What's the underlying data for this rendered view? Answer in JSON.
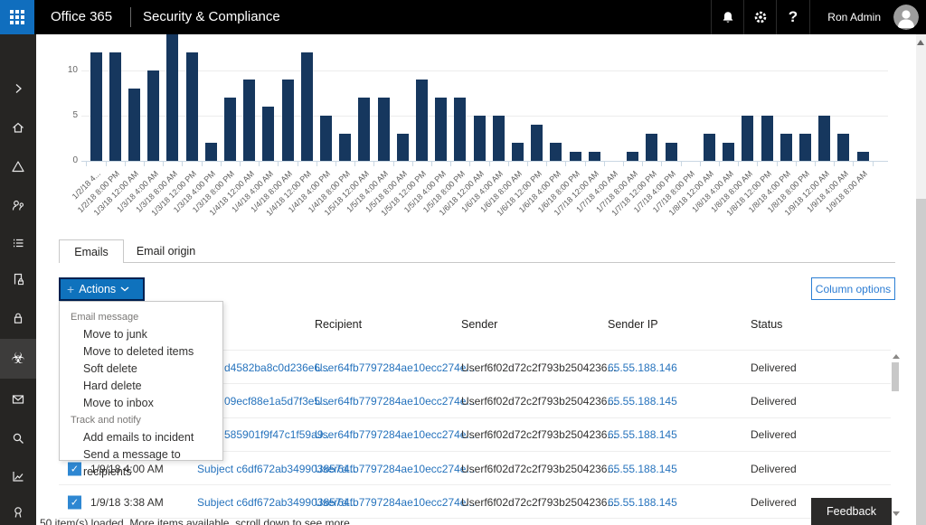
{
  "topbar": {
    "brand": "Office 365",
    "title": "Security & Compliance",
    "user": "Ron Admin",
    "icons": [
      "app-launcher-icon",
      "bell-icon",
      "gear-icon",
      "help-icon",
      "avatar"
    ]
  },
  "icons": {
    "help_glyph": "?",
    "plus_glyph": "+",
    "check_glyph": "✓",
    "biohazard_glyph": "☣"
  },
  "colors": {
    "topbar_bg": "#000000",
    "app_launcher_blue": "#106ebe",
    "sidebar_bg": "#262523",
    "sidebar_selected_bg": "#3d3c3b",
    "bar_navy": "#16375e",
    "link_blue": "#2673bd",
    "actions_button_blue": "#0f72bd",
    "actions_button_border": "#002050",
    "column_options_blue": "#2b7cd3",
    "checkbox_blue": "#2e87d2",
    "feedback_bg": "#2b2a29"
  },
  "sidebar": {
    "selected": "threat-management-icon",
    "items": [
      {
        "name": "expand-nav-icon"
      },
      {
        "name": "home-icon"
      },
      {
        "name": "alerts-icon"
      },
      {
        "name": "permissions-icon"
      },
      {
        "name": "classifications-icon"
      },
      {
        "name": "data-loss-prevention-icon"
      },
      {
        "name": "data-governance-icon"
      },
      {
        "name": "threat-management-icon"
      },
      {
        "name": "mail-flow-icon"
      },
      {
        "name": "search-icon"
      },
      {
        "name": "reports-icon"
      },
      {
        "name": "service-assurance-icon"
      }
    ]
  },
  "chart_data": {
    "type": "bar",
    "title": "",
    "xlabel": "",
    "ylabel": "",
    "yticks": [
      0,
      5,
      10
    ],
    "ylim": [
      0,
      15
    ],
    "grid": "horizontal",
    "legend": "none",
    "bar_color": "#16375e",
    "categories": [
      "1/2/18 4...",
      "1/2/18 8:00 PM",
      "1/3/18 12:00 AM",
      "1/3/18 4:00 AM",
      "1/3/18 8:00 AM",
      "1/3/18 12:00 PM",
      "1/3/18 4:00 PM",
      "1/3/18 8:00 PM",
      "1/4/18 12:00 AM",
      "1/4/18 4:00 AM",
      "1/4/18 8:00 AM",
      "1/4/18 12:00 PM",
      "1/4/18 4:00 PM",
      "1/4/18 8:00 PM",
      "1/5/18 12:00 AM",
      "1/5/18 4:00 AM",
      "1/5/18 8:00 AM",
      "1/5/18 12:00 PM",
      "1/5/18 4:00 PM",
      "1/5/18 8:00 PM",
      "1/6/18 12:00 AM",
      "1/6/18 4:00 AM",
      "1/6/18 8:00 AM",
      "1/6/18 12:00 PM",
      "1/6/18 4:00 PM",
      "1/6/18 8:00 PM",
      "1/7/18 12:00 AM",
      "1/7/18 4:00 AM",
      "1/7/18 8:00 AM",
      "1/7/18 12:00 PM",
      "1/7/18 4:00 PM",
      "1/7/18 8:00 PM",
      "1/8/18 12:00 AM",
      "1/8/18 4:00 AM",
      "1/8/18 8:00 AM",
      "1/8/18 12:00 PM",
      "1/8/18 4:00 PM",
      "1/8/18 8:00 PM",
      "1/9/18 12:00 AM",
      "1/9/18 4:00 AM",
      "1/9/18 8:00 AM"
    ],
    "values": [
      12,
      12,
      8,
      10,
      15,
      12,
      2,
      7,
      9,
      6,
      9,
      12,
      5,
      3,
      7,
      7,
      3,
      9,
      7,
      7,
      5,
      5,
      2,
      4,
      2,
      1,
      1,
      0,
      1,
      3,
      2,
      0,
      3,
      2,
      5,
      5,
      3,
      3,
      5,
      3,
      1
    ]
  },
  "tabs": {
    "active": "Emails",
    "items": [
      "Emails",
      "Email origin"
    ]
  },
  "toolbar": {
    "actions_label": "Actions",
    "column_options_label": "Column options"
  },
  "actions_menu": {
    "sections": [
      {
        "header": "Email message",
        "items": [
          "Move to junk",
          "Move to deleted items",
          "Soft delete",
          "Hard delete",
          "Move to inbox"
        ]
      },
      {
        "header": "Track and notify",
        "items": [
          "Add emails to incident",
          "Send a message to recipients"
        ]
      }
    ]
  },
  "table": {
    "headers": [
      "Recipient",
      "Sender",
      "Sender IP",
      "Status"
    ],
    "rows": [
      {
        "obscured": true,
        "subject_fragment": "d4582ba8c0d236e6...",
        "recipient": "User64fb7797284ae10ecc274e...",
        "sender": "Userf6f02d72c2f793b2504236...",
        "sender_ip": "65.55.188.146",
        "status": "Delivered"
      },
      {
        "obscured": true,
        "subject_fragment": "09ecf88e1a5d7f3e5...",
        "recipient": "User64fb7797284ae10ecc274e...",
        "sender": "Userf6f02d72c2f793b2504236...",
        "sender_ip": "65.55.188.145",
        "status": "Delivered"
      },
      {
        "obscured": true,
        "subject_fragment": "585901f9f47c1f59a9...",
        "recipient": "User64fb7797284ae10ecc274e...",
        "sender": "Userf6f02d72c2f793b2504236...",
        "sender_ip": "65.55.188.145",
        "status": "Delivered"
      },
      {
        "obscured": false,
        "checked": true,
        "date": "1/9/18 4:00 AM",
        "subject": "Subject c6df672ab349903857d...",
        "recipient": "User64fb7797284ae10ecc274e...",
        "sender": "Userf6f02d72c2f793b2504236...",
        "sender_ip": "65.55.188.145",
        "status": "Delivered"
      },
      {
        "obscured": false,
        "checked": true,
        "date": "1/9/18 3:38 AM",
        "subject": "Subject c6df672ab349903857d...",
        "recipient": "User64fb7797284ae10ecc274e...",
        "sender": "Userf6f02d72c2f793b2504236...",
        "sender_ip": "65.55.188.145",
        "status": "Delivered"
      }
    ]
  },
  "footer": {
    "status_text": "50 item(s) loaded. More items available, scroll down to see more",
    "feedback_label": "Feedback"
  }
}
